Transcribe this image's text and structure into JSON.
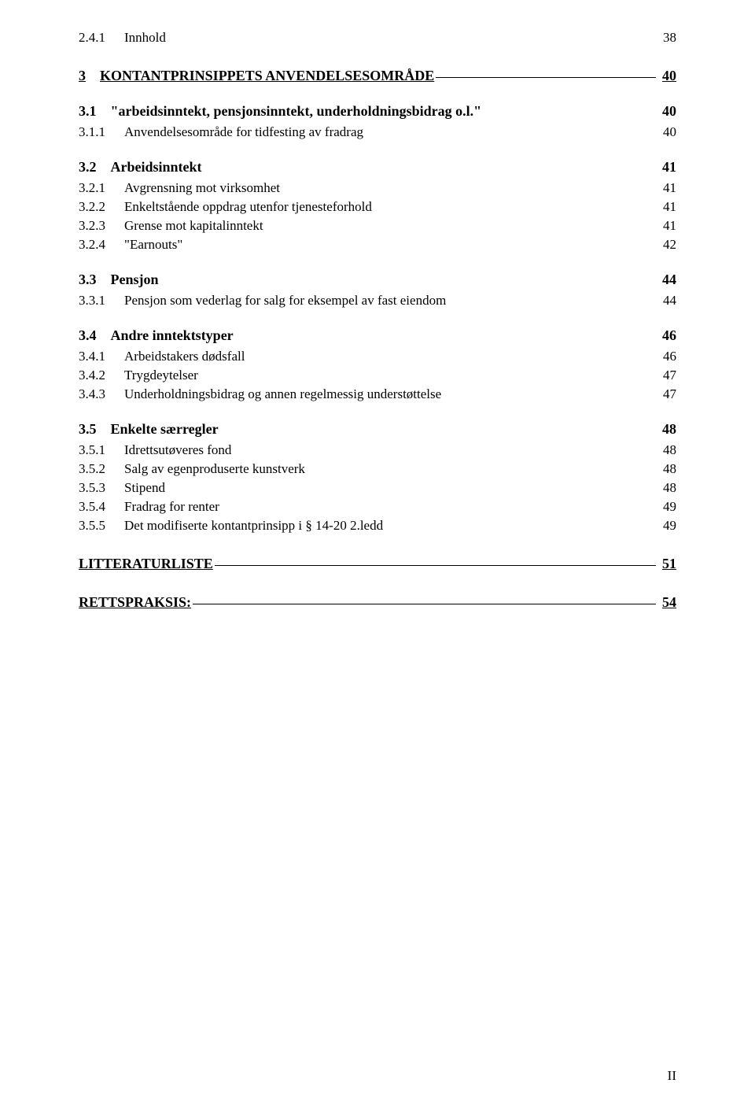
{
  "toc": [
    {
      "level": 3,
      "num": "2.4.1",
      "title": "Innhold",
      "page": "38"
    },
    {
      "level": 1,
      "num": "3",
      "title": "KONTANTPRINSIPPETS ANVENDELSESOMRÅDE",
      "page": "40"
    },
    {
      "level": 2,
      "num": "3.1",
      "title": "\"arbeidsinntekt, pensjonsinntekt, underholdningsbidrag o.l.\"",
      "page": "40"
    },
    {
      "level": 3,
      "num": "3.1.1",
      "title": "Anvendelsesområde for tidfesting av fradrag",
      "page": "40"
    },
    {
      "level": 2,
      "num": "3.2",
      "title": "Arbeidsinntekt",
      "page": "41"
    },
    {
      "level": 3,
      "num": "3.2.1",
      "title": "Avgrensning mot virksomhet",
      "page": "41"
    },
    {
      "level": 3,
      "num": "3.2.2",
      "title": "Enkeltstående oppdrag utenfor tjenesteforhold",
      "page": "41"
    },
    {
      "level": 3,
      "num": "3.2.3",
      "title": "Grense mot kapitalinntekt",
      "page": "41"
    },
    {
      "level": 3,
      "num": "3.2.4",
      "title": "\"Earnouts\"",
      "page": "42"
    },
    {
      "level": 2,
      "num": "3.3",
      "title": "Pensjon",
      "page": "44"
    },
    {
      "level": 3,
      "num": "3.3.1",
      "title": "Pensjon som vederlag for salg for eksempel av fast eiendom",
      "page": "44"
    },
    {
      "level": 2,
      "num": "3.4",
      "title": "Andre inntektstyper",
      "page": "46"
    },
    {
      "level": 3,
      "num": "3.4.1",
      "title": "Arbeidstakers dødsfall",
      "page": "46"
    },
    {
      "level": 3,
      "num": "3.4.2",
      "title": "Trygdeytelser",
      "page": "47"
    },
    {
      "level": 3,
      "num": "3.4.3",
      "title": "Underholdningsbidrag og annen regelmessig understøttelse",
      "page": "47"
    },
    {
      "level": 2,
      "num": "3.5",
      "title": "Enkelte særregler",
      "page": "48"
    },
    {
      "level": 3,
      "num": "3.5.1",
      "title": "Idrettsutøveres fond",
      "page": "48"
    },
    {
      "level": 3,
      "num": "3.5.2",
      "title": "Salg av egenproduserte kunstverk",
      "page": "48"
    },
    {
      "level": 3,
      "num": "3.5.3",
      "title": "Stipend",
      "page": "48"
    },
    {
      "level": 3,
      "num": "3.5.4",
      "title": "Fradrag for renter",
      "page": "49"
    },
    {
      "level": 3,
      "num": "3.5.5",
      "title": "Det modifiserte kontantprinsipp i § 14-20 2.ledd",
      "page": "49"
    },
    {
      "level": 1,
      "num": "",
      "title": "LITTERATURLISTE",
      "page": "51"
    },
    {
      "level": 1,
      "num": "",
      "title": "RETTSPRAKSIS:",
      "page": "54"
    }
  ],
  "footer_page": "II"
}
